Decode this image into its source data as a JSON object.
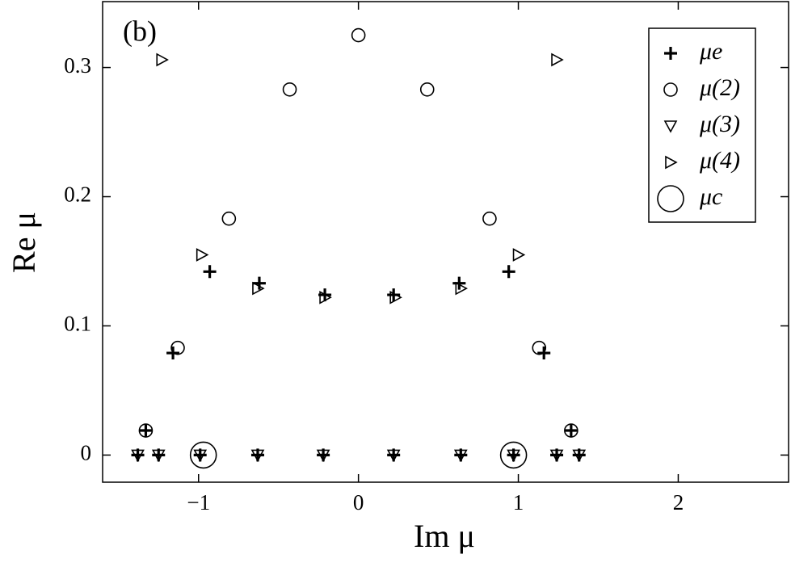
{
  "chart_data": {
    "type": "scatter",
    "panel_label": "(b)",
    "x_label": "Im μ",
    "y_label": "Re μ",
    "xlim": [
      -1.6,
      2.69
    ],
    "ylim": [
      -0.021,
      0.351
    ],
    "xticks": [
      {
        "value": -1,
        "label": "−1"
      },
      0,
      1,
      2
    ],
    "yticks": [
      0,
      0.1,
      0.2,
      0.3
    ],
    "legend": "upper right",
    "series": [
      {
        "name": "μe",
        "color": "#000000",
        "marker": "plus",
        "x": [
          -1.38,
          -1.25,
          -0.99,
          -0.63,
          -0.22,
          0.22,
          0.64,
          0.97,
          1.24,
          1.38,
          -1.33,
          1.33,
          -1.16,
          1.16,
          -0.93,
          0.94,
          -0.62,
          0.63,
          -0.21,
          0.22
        ],
        "values": [
          0,
          0,
          0,
          0,
          0,
          0,
          0,
          0,
          0,
          0,
          0.019,
          0.019,
          0.079,
          0.079,
          0.142,
          0.142,
          0.133,
          0.133,
          0.124,
          0.124
        ]
      },
      {
        "name": "μ(2)",
        "color": "#000000",
        "marker": "circle",
        "x": [
          -1.33,
          1.33,
          -1.13,
          1.13,
          -0.81,
          0.82,
          -0.43,
          0.43,
          0
        ],
        "values": [
          0.019,
          0.019,
          0.083,
          0.083,
          0.183,
          0.183,
          0.283,
          0.283,
          0.325
        ]
      },
      {
        "name": "μ(3)",
        "color": "#000000",
        "marker": "triangle-down",
        "x": [
          -1.38,
          -1.25,
          -0.99,
          -0.63,
          -0.22,
          0.22,
          0.64,
          0.97,
          1.24,
          1.38
        ],
        "values": [
          0,
          0,
          0,
          0,
          0,
          0,
          0,
          0,
          0,
          0
        ]
      },
      {
        "name": "μ(4)",
        "color": "#000000",
        "marker": "triangle-right",
        "x": [
          -1.23,
          1.24,
          -0.98,
          1.0,
          -0.63,
          0.64,
          -0.21,
          0.23
        ],
        "values": [
          0.306,
          0.306,
          0.155,
          0.155,
          0.129,
          0.129,
          0.122,
          0.122
        ]
      },
      {
        "name": "μc",
        "color": "#000000",
        "marker": "circle-large",
        "x": [
          -0.97,
          0.97
        ],
        "values": [
          0,
          0
        ]
      }
    ]
  }
}
